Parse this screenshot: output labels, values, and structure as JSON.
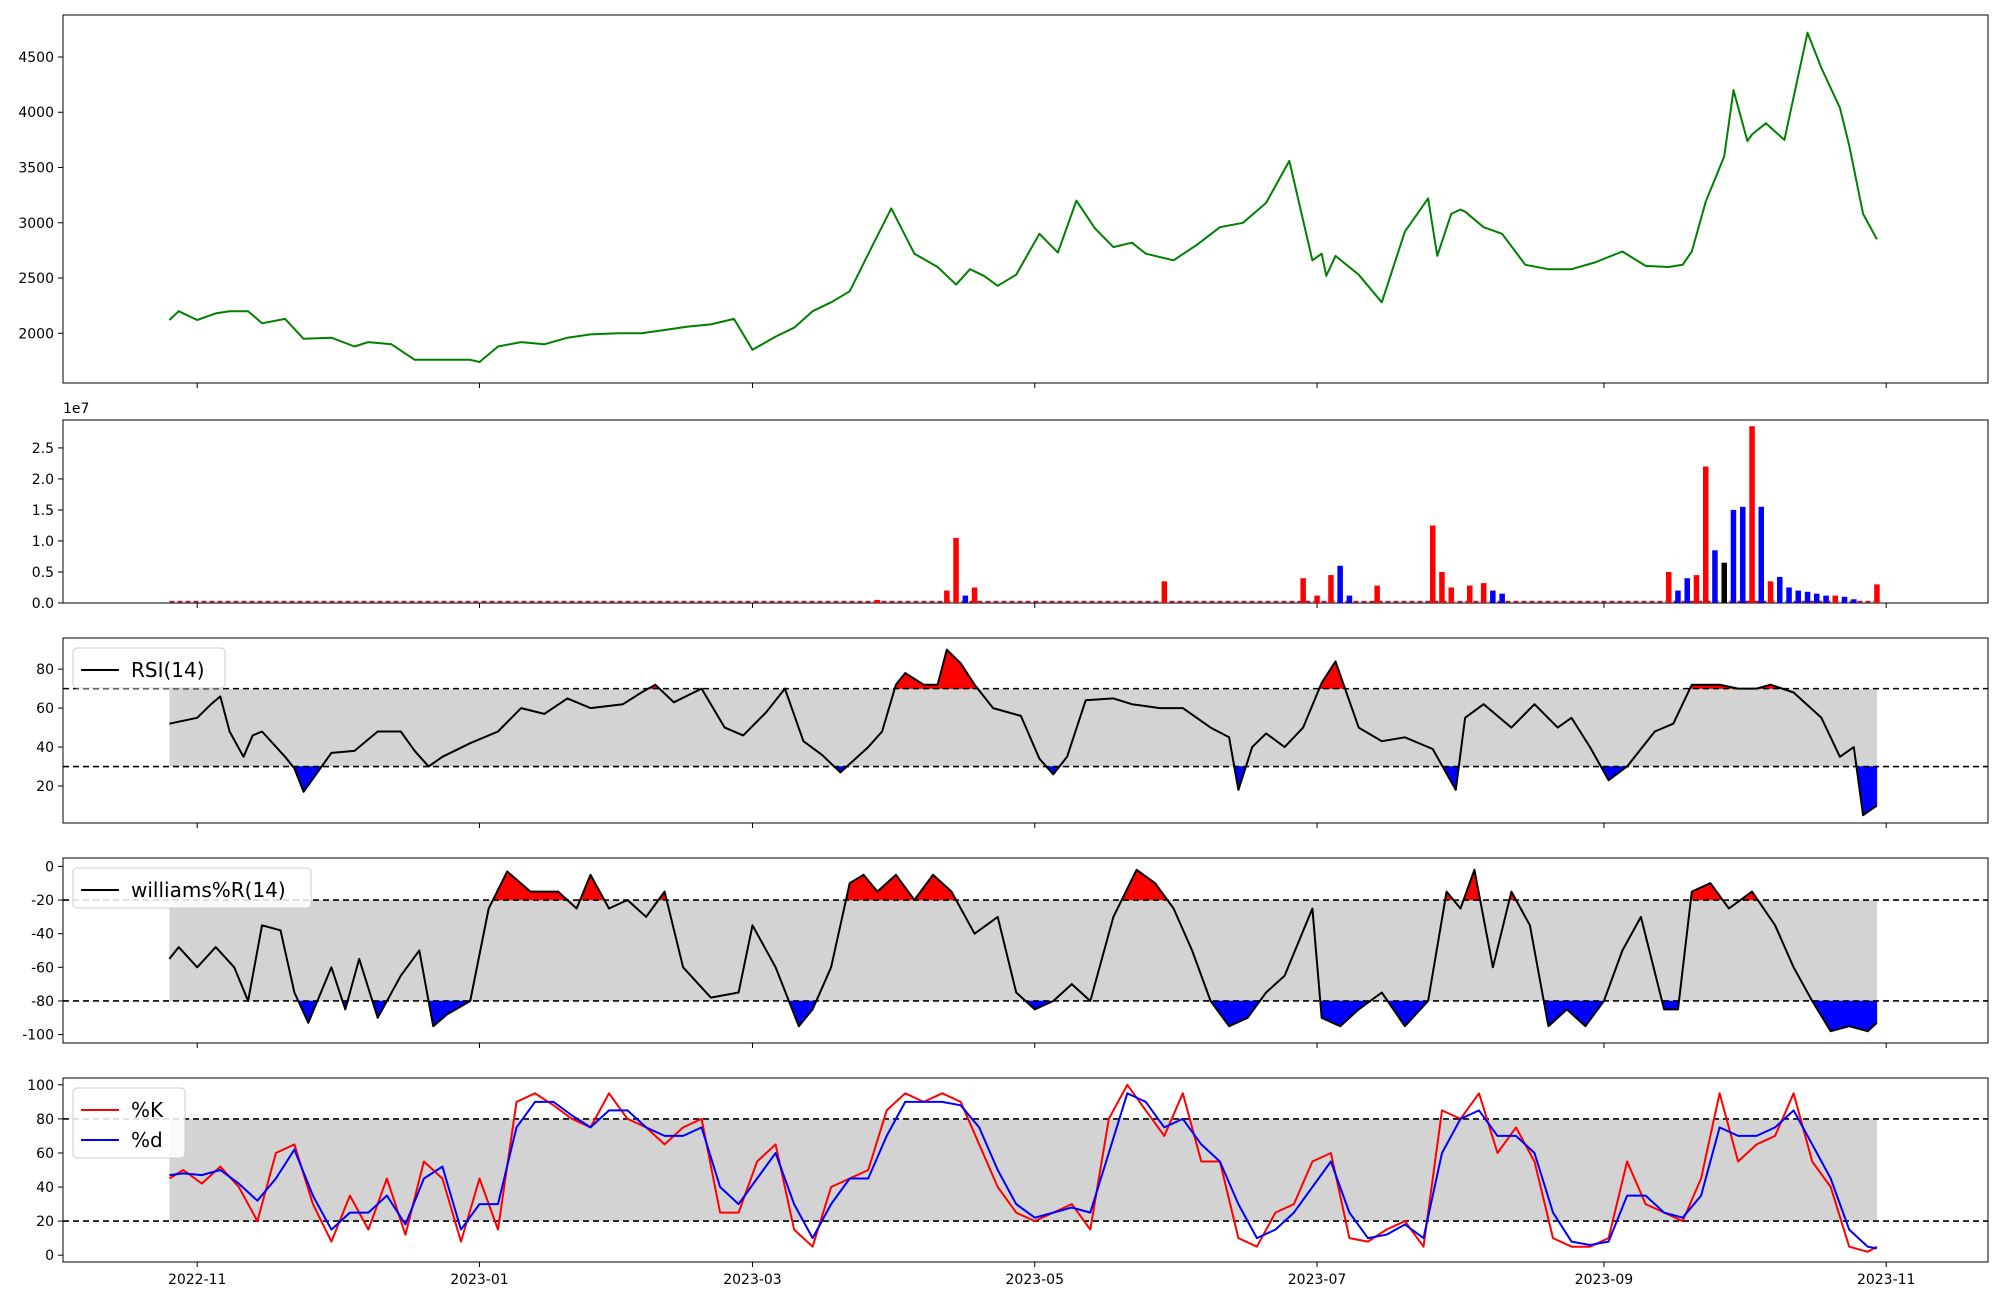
{
  "chart_data": [
    {
      "id": "price",
      "type": "line",
      "color": "#008000",
      "ylim": [
        1550,
        4880
      ],
      "yticks": [
        2000,
        2500,
        3000,
        3500,
        4000,
        4500
      ],
      "x": [
        "2022-10-26",
        "2022-10-28",
        "2022-11-01",
        "2022-11-05",
        "2022-11-08",
        "2022-11-12",
        "2022-11-15",
        "2022-11-20",
        "2022-11-24",
        "2022-11-30",
        "2022-12-05",
        "2022-12-08",
        "2022-12-13",
        "2022-12-18",
        "2022-12-22",
        "2022-12-26",
        "2022-12-30",
        "2023-01-01",
        "2023-01-05",
        "2023-01-10",
        "2023-01-15",
        "2023-01-20",
        "2023-01-25",
        "2023-01-31",
        "2023-02-05",
        "2023-02-10",
        "2023-02-15",
        "2023-02-20",
        "2023-02-25",
        "2023-03-01",
        "2023-03-06",
        "2023-03-10",
        "2023-03-14",
        "2023-03-18",
        "2023-03-22",
        "2023-03-27",
        "2023-03-31",
        "2023-04-05",
        "2023-04-10",
        "2023-04-13",
        "2023-04-14",
        "2023-04-17",
        "2023-04-20",
        "2023-04-23",
        "2023-04-27",
        "2023-05-02",
        "2023-05-06",
        "2023-05-10",
        "2023-05-14",
        "2023-05-18",
        "2023-05-22",
        "2023-05-25",
        "2023-05-31",
        "2023-06-05",
        "2023-06-10",
        "2023-06-15",
        "2023-06-20",
        "2023-06-25",
        "2023-06-30",
        "2023-07-02",
        "2023-07-03",
        "2023-07-05",
        "2023-07-10",
        "2023-07-15",
        "2023-07-20",
        "2023-07-25",
        "2023-07-27",
        "2023-07-30",
        "2023-08-01",
        "2023-08-02",
        "2023-08-06",
        "2023-08-10",
        "2023-08-15",
        "2023-08-20",
        "2023-08-25",
        "2023-08-30",
        "2023-09-05",
        "2023-09-10",
        "2023-09-15",
        "2023-09-18",
        "2023-09-20",
        "2023-09-23",
        "2023-09-27",
        "2023-09-29",
        "2023-10-02",
        "2023-10-03",
        "2023-10-06",
        "2023-10-10",
        "2023-10-15",
        "2023-10-18",
        "2023-10-22",
        "2023-10-24",
        "2023-10-27",
        "2023-10-30"
      ],
      "values": [
        2120,
        2200,
        2120,
        2180,
        2200,
        2200,
        2090,
        2130,
        1950,
        1960,
        1880,
        1920,
        1900,
        1760,
        1760,
        1760,
        1760,
        1740,
        1880,
        1920,
        1900,
        1960,
        1990,
        2000,
        2000,
        2030,
        2060,
        2080,
        2130,
        1850,
        1970,
        2050,
        2200,
        2280,
        2380,
        2800,
        3130,
        2720,
        2600,
        2480,
        2440,
        2580,
        2520,
        2430,
        2530,
        2900,
        2730,
        3200,
        2950,
        2780,
        2820,
        2720,
        2660,
        2800,
        2960,
        3000,
        3180,
        3560,
        2660,
        2720,
        2520,
        2700,
        2530,
        2280,
        2920,
        3220,
        2700,
        3080,
        3120,
        3100,
        2960,
        2900,
        2620,
        2580,
        2580,
        2640,
        2740,
        2610,
        2600,
        2620,
        2740,
        3190,
        3600,
        4200,
        3740,
        3800,
        3900,
        3750,
        4720,
        4400,
        4040,
        3700,
        3080,
        2850
      ]
    },
    {
      "id": "volume",
      "type": "bar",
      "exponent_label": "1e7",
      "ylim": [
        0,
        2.95
      ],
      "yticks": [
        0.0,
        0.5,
        1.0,
        1.5,
        2.0,
        2.5
      ],
      "yticklabels": [
        "0.0",
        "0.5",
        "1.0",
        "1.5",
        "2.0",
        "2.5"
      ],
      "x": [
        "2023-03-28",
        "2023-04-12",
        "2023-04-14",
        "2023-04-16",
        "2023-04-18",
        "2023-05-29",
        "2023-06-28",
        "2023-07-01",
        "2023-07-04",
        "2023-07-06",
        "2023-07-08",
        "2023-07-14",
        "2023-07-26",
        "2023-07-28",
        "2023-07-30",
        "2023-08-03",
        "2023-08-06",
        "2023-08-08",
        "2023-08-10",
        "2023-09-15",
        "2023-09-17",
        "2023-09-19",
        "2023-09-21",
        "2023-09-23",
        "2023-09-25",
        "2023-09-27",
        "2023-09-29",
        "2023-10-01",
        "2023-10-03",
        "2023-10-05",
        "2023-10-07",
        "2023-10-09",
        "2023-10-11",
        "2023-10-13",
        "2023-10-15",
        "2023-10-17",
        "2023-10-19",
        "2023-10-21",
        "2023-10-23",
        "2023-10-25",
        "2023-10-30"
      ],
      "values": [
        0.05,
        0.2,
        1.05,
        0.12,
        0.25,
        0.35,
        0.4,
        0.12,
        0.45,
        0.6,
        0.12,
        0.28,
        1.25,
        0.5,
        0.25,
        0.28,
        0.32,
        0.2,
        0.15,
        0.5,
        0.2,
        0.4,
        0.45,
        2.2,
        0.85,
        0.65,
        1.5,
        1.55,
        2.85,
        1.55,
        0.35,
        0.42,
        0.25,
        0.2,
        0.18,
        0.15,
        0.12,
        0.12,
        0.1,
        0.06,
        0.3
      ],
      "colors": [
        "#ff0000",
        "#ff0000",
        "#ff0000",
        "#0000ff",
        "#ff0000",
        "#ff0000",
        "#ff0000",
        "#ff0000",
        "#ff0000",
        "#0000ff",
        "#0000ff",
        "#ff0000",
        "#ff0000",
        "#ff0000",
        "#ff0000",
        "#ff0000",
        "#ff0000",
        "#0000ff",
        "#0000ff",
        "#ff0000",
        "#0000ff",
        "#0000ff",
        "#ff0000",
        "#ff0000",
        "#0000ff",
        "#000000",
        "#0000ff",
        "#0000ff",
        "#ff0000",
        "#0000ff",
        "#ff0000",
        "#0000ff",
        "#0000ff",
        "#0000ff",
        "#0000ff",
        "#0000ff",
        "#0000ff",
        "#ff0000",
        "#0000ff",
        "#0000ff",
        "#ff0000"
      ]
    },
    {
      "id": "rsi",
      "type": "line",
      "legend": [
        "RSI(14)"
      ],
      "legend_position": "upper-left",
      "color": "#000000",
      "ylim": [
        1,
        96
      ],
      "yticks": [
        20,
        40,
        60,
        80
      ],
      "thresholds": [
        30,
        70
      ],
      "band_color": "#d3d3d3",
      "overbought_fill": "#ff0000",
      "oversold_fill": "#0000ff",
      "x": [
        "2022-10-26",
        "2022-10-28",
        "2022-11-01",
        "2022-11-04",
        "2022-11-06",
        "2022-11-08",
        "2022-11-11",
        "2022-11-13",
        "2022-11-15",
        "2022-11-20",
        "2022-11-22",
        "2022-11-24",
        "2022-11-30",
        "2022-12-05",
        "2022-12-10",
        "2022-12-15",
        "2022-12-18",
        "2022-12-21",
        "2022-12-24",
        "2022-12-30",
        "2023-01-05",
        "2023-01-10",
        "2023-01-15",
        "2023-01-20",
        "2023-01-25",
        "2023-02-01",
        "2023-02-05",
        "2023-02-08",
        "2023-02-12",
        "2023-02-18",
        "2023-02-23",
        "2023-02-27",
        "2023-03-04",
        "2023-03-08",
        "2023-03-12",
        "2023-03-16",
        "2023-03-20",
        "2023-03-26",
        "2023-03-29",
        "2023-04-01",
        "2023-04-03",
        "2023-04-07",
        "2023-04-10",
        "2023-04-12",
        "2023-04-15",
        "2023-04-18",
        "2023-04-22",
        "2023-04-28",
        "2023-05-02",
        "2023-05-05",
        "2023-05-08",
        "2023-05-12",
        "2023-05-18",
        "2023-05-22",
        "2023-05-28",
        "2023-06-02",
        "2023-06-08",
        "2023-06-12",
        "2023-06-14",
        "2023-06-17",
        "2023-06-20",
        "2023-06-24",
        "2023-06-28",
        "2023-07-02",
        "2023-07-05",
        "2023-07-10",
        "2023-07-15",
        "2023-07-20",
        "2023-07-26",
        "2023-07-31",
        "2023-08-02",
        "2023-08-06",
        "2023-08-12",
        "2023-08-17",
        "2023-08-22",
        "2023-08-25",
        "2023-08-29",
        "2023-09-02",
        "2023-09-06",
        "2023-09-12",
        "2023-09-16",
        "2023-09-20",
        "2023-09-26",
        "2023-09-30",
        "2023-10-04",
        "2023-10-07",
        "2023-10-12",
        "2023-10-18",
        "2023-10-22",
        "2023-10-25",
        "2023-10-27",
        "2023-10-30"
      ],
      "values": [
        52,
        53,
        55,
        62,
        66,
        48,
        35,
        46,
        48,
        35,
        29,
        17,
        37,
        38,
        48,
        48,
        38,
        30,
        35,
        42,
        48,
        60,
        57,
        65,
        60,
        62,
        68,
        72,
        63,
        70,
        50,
        46,
        58,
        70,
        43,
        36,
        27,
        40,
        48,
        72,
        78,
        72,
        72,
        90,
        83,
        72,
        60,
        56,
        34,
        26,
        35,
        64,
        65,
        62,
        60,
        60,
        50,
        45,
        18,
        40,
        47,
        40,
        50,
        73,
        84,
        50,
        43,
        45,
        39,
        18,
        55,
        62,
        50,
        62,
        50,
        55,
        40,
        23,
        30,
        48,
        52,
        72,
        72,
        70,
        70,
        72,
        68,
        55,
        35,
        40,
        5,
        10
      ]
    },
    {
      "id": "williams",
      "type": "line",
      "legend": [
        "williams%R(14)"
      ],
      "legend_position": "upper-left",
      "color": "#000000",
      "ylim": [
        -105,
        5
      ],
      "yticks": [
        0,
        -20,
        -40,
        -60,
        -80,
        -100
      ],
      "thresholds": [
        -20,
        -80
      ],
      "band_color": "#d3d3d3",
      "overbought_fill": "#ff0000",
      "oversold_fill": "#0000ff",
      "x": [
        "2022-10-26",
        "2022-10-28",
        "2022-11-01",
        "2022-11-05",
        "2022-11-09",
        "2022-11-12",
        "2022-11-15",
        "2022-11-19",
        "2022-11-22",
        "2022-11-25",
        "2022-11-30",
        "2022-12-03",
        "2022-12-06",
        "2022-12-10",
        "2022-12-15",
        "2022-12-19",
        "2022-12-22",
        "2022-12-25",
        "2022-12-30",
        "2023-01-03",
        "2023-01-07",
        "2023-01-12",
        "2023-01-18",
        "2023-01-22",
        "2023-01-25",
        "2023-01-29",
        "2023-02-02",
        "2023-02-06",
        "2023-02-10",
        "2023-02-14",
        "2023-02-20",
        "2023-02-26",
        "2023-03-01",
        "2023-03-06",
        "2023-03-11",
        "2023-03-14",
        "2023-03-18",
        "2023-03-22",
        "2023-03-25",
        "2023-03-28",
        "2023-04-01",
        "2023-04-05",
        "2023-04-09",
        "2023-04-13",
        "2023-04-18",
        "2023-04-23",
        "2023-04-27",
        "2023-05-01",
        "2023-05-05",
        "2023-05-09",
        "2023-05-13",
        "2023-05-18",
        "2023-05-23",
        "2023-05-27",
        "2023-05-31",
        "2023-06-04",
        "2023-06-08",
        "2023-06-12",
        "2023-06-16",
        "2023-06-20",
        "2023-06-24",
        "2023-06-30",
        "2023-07-02",
        "2023-07-06",
        "2023-07-10",
        "2023-07-15",
        "2023-07-20",
        "2023-07-25",
        "2023-07-29",
        "2023-08-01",
        "2023-08-04",
        "2023-08-08",
        "2023-08-12",
        "2023-08-16",
        "2023-08-20",
        "2023-08-24",
        "2023-08-28",
        "2023-09-01",
        "2023-09-05",
        "2023-09-09",
        "2023-09-14",
        "2023-09-17",
        "2023-09-20",
        "2023-09-24",
        "2023-09-28",
        "2023-10-03",
        "2023-10-08",
        "2023-10-12",
        "2023-10-16",
        "2023-10-20",
        "2023-10-24",
        "2023-10-28",
        "2023-10-30"
      ],
      "values": [
        -55,
        -48,
        -60,
        -48,
        -60,
        -80,
        -35,
        -38,
        -75,
        -93,
        -60,
        -85,
        -55,
        -90,
        -65,
        -50,
        -95,
        -88,
        -80,
        -25,
        -3,
        -15,
        -15,
        -25,
        -5,
        -25,
        -20,
        -30,
        -15,
        -60,
        -78,
        -75,
        -35,
        -60,
        -95,
        -85,
        -60,
        -10,
        -5,
        -15,
        -5,
        -20,
        -5,
        -15,
        -40,
        -30,
        -75,
        -85,
        -80,
        -70,
        -80,
        -30,
        -2,
        -10,
        -25,
        -50,
        -80,
        -95,
        -90,
        -75,
        -65,
        -25,
        -90,
        -95,
        -85,
        -75,
        -95,
        -80,
        -15,
        -25,
        -2,
        -60,
        -15,
        -35,
        -95,
        -85,
        -95,
        -80,
        -50,
        -30,
        -85,
        -85,
        -15,
        -10,
        -25,
        -15,
        -35,
        -60,
        -80,
        -98,
        -95,
        -98,
        -93
      ]
    },
    {
      "id": "stochastic",
      "type": "line",
      "legend": [
        "%K",
        "%d"
      ],
      "legend_position": "upper-left",
      "ylim": [
        -4,
        104
      ],
      "yticks": [
        0,
        20,
        40,
        60,
        80,
        100
      ],
      "thresholds": [
        20,
        80
      ],
      "band_color": "#d3d3d3",
      "xticks": [
        "2022-11-01",
        "2023-01-01",
        "2023-03-01",
        "2023-05-01",
        "2023-07-01",
        "2023-09-01",
        "2023-11-01"
      ],
      "xticklabels": [
        "2022-11",
        "2023-01",
        "2023-03",
        "2023-05",
        "2023-07",
        "2023-09",
        "2023-11"
      ],
      "x": [
        "2022-10-26",
        "2022-10-29",
        "2022-11-02",
        "2022-11-06",
        "2022-11-10",
        "2022-11-14",
        "2022-11-18",
        "2022-11-22",
        "2022-11-26",
        "2022-11-30",
        "2022-12-04",
        "2022-12-08",
        "2022-12-12",
        "2022-12-16",
        "2022-12-20",
        "2022-12-24",
        "2022-12-28",
        "2023-01-01",
        "2023-01-05",
        "2023-01-09",
        "2023-01-13",
        "2023-01-17",
        "2023-01-21",
        "2023-01-25",
        "2023-01-29",
        "2023-02-02",
        "2023-02-06",
        "2023-02-10",
        "2023-02-14",
        "2023-02-18",
        "2023-02-22",
        "2023-02-26",
        "2023-03-02",
        "2023-03-06",
        "2023-03-10",
        "2023-03-14",
        "2023-03-18",
        "2023-03-22",
        "2023-03-26",
        "2023-03-30",
        "2023-04-03",
        "2023-04-07",
        "2023-04-11",
        "2023-04-15",
        "2023-04-19",
        "2023-04-23",
        "2023-04-27",
        "2023-05-01",
        "2023-05-05",
        "2023-05-09",
        "2023-05-13",
        "2023-05-17",
        "2023-05-21",
        "2023-05-25",
        "2023-05-29",
        "2023-06-02",
        "2023-06-06",
        "2023-06-10",
        "2023-06-14",
        "2023-06-18",
        "2023-06-22",
        "2023-06-26",
        "2023-06-30",
        "2023-07-04",
        "2023-07-08",
        "2023-07-12",
        "2023-07-16",
        "2023-07-20",
        "2023-07-24",
        "2023-07-28",
        "2023-08-01",
        "2023-08-05",
        "2023-08-09",
        "2023-08-13",
        "2023-08-17",
        "2023-08-21",
        "2023-08-25",
        "2023-08-29",
        "2023-09-02",
        "2023-09-06",
        "2023-09-10",
        "2023-09-14",
        "2023-09-18",
        "2023-09-22",
        "2023-09-26",
        "2023-09-30",
        "2023-10-04",
        "2023-10-08",
        "2023-10-12",
        "2023-10-16",
        "2023-10-20",
        "2023-10-24",
        "2023-10-28",
        "2023-10-30"
      ],
      "series": [
        {
          "name": "%K",
          "color": "#ff0000",
          "values": [
            45,
            50,
            42,
            52,
            40,
            20,
            60,
            65,
            30,
            8,
            35,
            15,
            45,
            12,
            55,
            45,
            8,
            45,
            15,
            90,
            95,
            88,
            80,
            75,
            95,
            80,
            75,
            65,
            75,
            80,
            25,
            25,
            55,
            65,
            15,
            5,
            40,
            45,
            50,
            85,
            95,
            90,
            95,
            90,
            65,
            40,
            25,
            20,
            25,
            30,
            15,
            80,
            100,
            85,
            70,
            95,
            55,
            55,
            10,
            5,
            25,
            30,
            55,
            60,
            10,
            8,
            15,
            20,
            5,
            85,
            80,
            95,
            60,
            75,
            55,
            10,
            5,
            5,
            10,
            55,
            30,
            25,
            20,
            45,
            95,
            55,
            65,
            70,
            95,
            55,
            40,
            5,
            2,
            5
          ]
        },
        {
          "name": "%d",
          "color": "#0000ff",
          "values": [
            47,
            48,
            47,
            50,
            42,
            32,
            45,
            62,
            35,
            15,
            25,
            25,
            35,
            18,
            45,
            52,
            15,
            30,
            30,
            75,
            90,
            90,
            82,
            75,
            85,
            85,
            75,
            70,
            70,
            75,
            40,
            30,
            45,
            60,
            30,
            10,
            30,
            45,
            45,
            70,
            90,
            90,
            90,
            88,
            75,
            50,
            30,
            22,
            25,
            28,
            25,
            60,
            95,
            90,
            75,
            80,
            65,
            55,
            30,
            10,
            15,
            25,
            40,
            55,
            25,
            10,
            12,
            18,
            10,
            60,
            80,
            85,
            70,
            70,
            60,
            25,
            8,
            6,
            8,
            35,
            35,
            25,
            22,
            35,
            75,
            70,
            70,
            75,
            85,
            65,
            45,
            15,
            5,
            4
          ]
        }
      ]
    }
  ]
}
